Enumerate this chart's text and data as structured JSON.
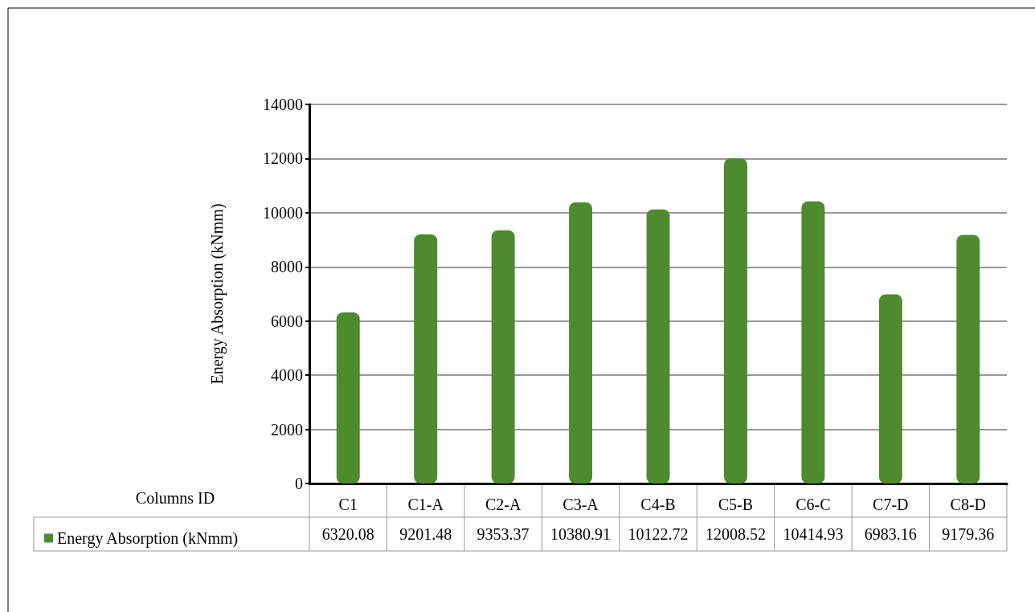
{
  "chart_data": {
    "type": "bar",
    "xlabel": "Columns ID",
    "ylabel": "Energy Absorption (kNmm)",
    "categories": [
      "C1",
      "C1-A",
      "C2-A",
      "C3-A",
      "C4-B",
      "C5-B",
      "C6-C",
      "C7-D",
      "C8-D"
    ],
    "series": [
      {
        "name": "Energy Absorption (kNmm)",
        "color": "#4e8a2e",
        "values": [
          6320.08,
          9201.48,
          9353.37,
          10380.91,
          10122.72,
          12008.52,
          10414.93,
          6983.16,
          9179.36
        ]
      }
    ],
    "ylim": [
      0,
      14000
    ],
    "yticks": [
      0,
      2000,
      4000,
      6000,
      8000,
      10000,
      12000,
      14000
    ],
    "grid": "y",
    "legend": "bottom left",
    "data_labels": true
  }
}
